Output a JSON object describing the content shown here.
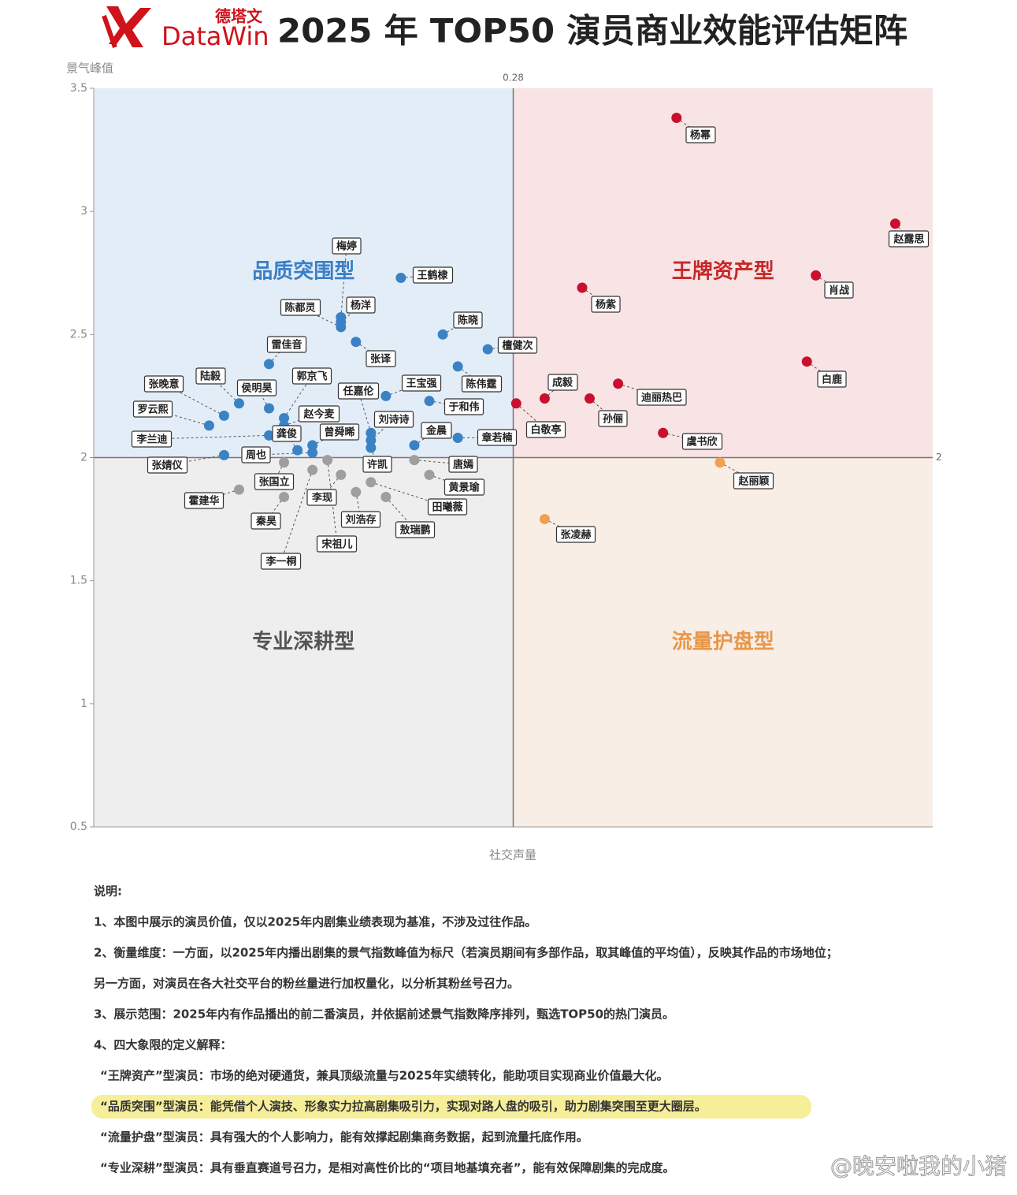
{
  "logo": {
    "cn": "德塔文",
    "en": "DataWin"
  },
  "chart_data": {
    "type": "scatter",
    "title": "2025 年 TOP50 演员商业效能评估矩阵",
    "y_label": "景气峰值",
    "x_label": "社交声量",
    "xlim": [
      0,
      0.56
    ],
    "ylim": [
      0.5,
      3.5
    ],
    "yticks": [
      0.5,
      1,
      1.5,
      2,
      2.5,
      3,
      3.5
    ],
    "x_divider": 0.28,
    "y_divider": 2,
    "quadrants": [
      {
        "name": "品质突围型",
        "color": "#3a7fc4",
        "fill": "#e3edf8"
      },
      {
        "name": "王牌资产型",
        "color": "#c62828",
        "fill": "#f8e3e5"
      },
      {
        "name": "专业深耕型",
        "color": "#555555",
        "fill": "#eeeeee"
      },
      {
        "name": "流量护盘型",
        "color": "#e8974a",
        "fill": "#f8eee5"
      }
    ],
    "series": [
      {
        "color": "#c8102e",
        "labels": [
          "杨幂",
          "赵露思",
          "肖战",
          "杨紫",
          "白鹿",
          "成毅",
          "迪丽热巴",
          "孙俪",
          "虞书欣",
          "白敬亭"
        ],
        "x": [
          0.389,
          0.535,
          0.482,
          0.326,
          0.476,
          0.301,
          0.35,
          0.331,
          0.38,
          0.282
        ],
        "y": [
          3.38,
          2.95,
          2.74,
          2.69,
          2.39,
          2.24,
          2.3,
          2.24,
          2.1,
          2.22
        ]
      },
      {
        "color": "#f0a050",
        "labels": [
          "赵丽颖",
          "张凌赫"
        ],
        "x": [
          0.418,
          0.301
        ],
        "y": [
          1.98,
          1.75
        ]
      },
      {
        "color": "#3a82c4",
        "labels": [
          "梅婷",
          "杨洋",
          "陈都灵",
          "王鹤棣",
          "陈晓",
          "檀健次",
          "雷佳音",
          "张译",
          "陈伟霆",
          "王宝强",
          "于和伟",
          "郭京飞",
          "张晚意",
          "陆毅",
          "侯明昊",
          "罗云熙",
          "李兰迪",
          "任嘉伦",
          "刘诗诗",
          "赵今麦",
          "金晨",
          "章若楠",
          "龚俊",
          "曾舜晞",
          "周也",
          "张婧仪",
          "许凯"
        ],
        "x": [
          0.165,
          0.165,
          0.165,
          0.205,
          0.233,
          0.263,
          0.117,
          0.175,
          0.243,
          0.195,
          0.224,
          0.127,
          0.087,
          0.097,
          0.117,
          0.077,
          0.117,
          0.185,
          0.185,
          0.127,
          0.214,
          0.243,
          0.136,
          0.146,
          0.146,
          0.087,
          0.185
        ],
        "y": [
          2.57,
          2.55,
          2.53,
          2.73,
          2.5,
          2.44,
          2.38,
          2.47,
          2.37,
          2.25,
          2.23,
          2.16,
          2.17,
          2.22,
          2.2,
          2.13,
          2.09,
          2.1,
          2.07,
          2.13,
          2.05,
          2.08,
          2.03,
          2.05,
          2.02,
          2.01,
          2.04
        ]
      },
      {
        "color": "#9e9e9e",
        "labels": [
          "唐嫣",
          "黄景瑜",
          "田曦薇",
          "敖瑞鹏",
          "刘浩存",
          "李现",
          "宋祖儿",
          "张国立",
          "霍建华",
          "秦昊",
          "李一桐"
        ],
        "x": [
          0.214,
          0.224,
          0.185,
          0.195,
          0.175,
          0.165,
          0.156,
          0.127,
          0.097,
          0.127,
          0.146
        ],
        "y": [
          1.99,
          1.93,
          1.9,
          1.84,
          1.86,
          1.93,
          1.99,
          1.98,
          1.87,
          1.84,
          1.95
        ]
      }
    ]
  },
  "notes": {
    "heading": "说明:",
    "items": [
      "1、本图中展示的演员价值，仅以2025年内剧集业绩表现为基准，不涉及过往作品。",
      "2、衡量维度：一方面，以2025年内播出剧集的景气指数峰值为标尺（若演员期间有多部作品，取其峰值的平均值），反映其作品的市场地位；",
      "另一方面，对演员在各大社交平台的粉丝量进行加权量化，以分析其粉丝号召力。",
      "3、展示范围：2025年内有作品播出的前二番演员，并依据前述景气指数降序排列，甄选TOP50的热门演员。",
      "4、四大象限的定义解释：",
      "“王牌资产”型演员：市场的绝对硬通货，兼具顶级流量与2025年实绩转化，能助项目实现商业价值最大化。",
      "“品质突围”型演员：能凭借个人演技、形象实力拉高剧集吸引力，实现对路人盘的吸引，助力剧集突围至更大圈层。",
      "“流量护盘”型演员：具有强大的个人影响力，能有效撑起剧集商务数据，起到流量托底作用。",
      "“专业深耕”型演员：具有垂直赛道号召力，是相对高性价比的“项目地基填充者”，能有效保障剧集的完成度。"
    ]
  },
  "watermark": "@晚安啦我的小猪"
}
